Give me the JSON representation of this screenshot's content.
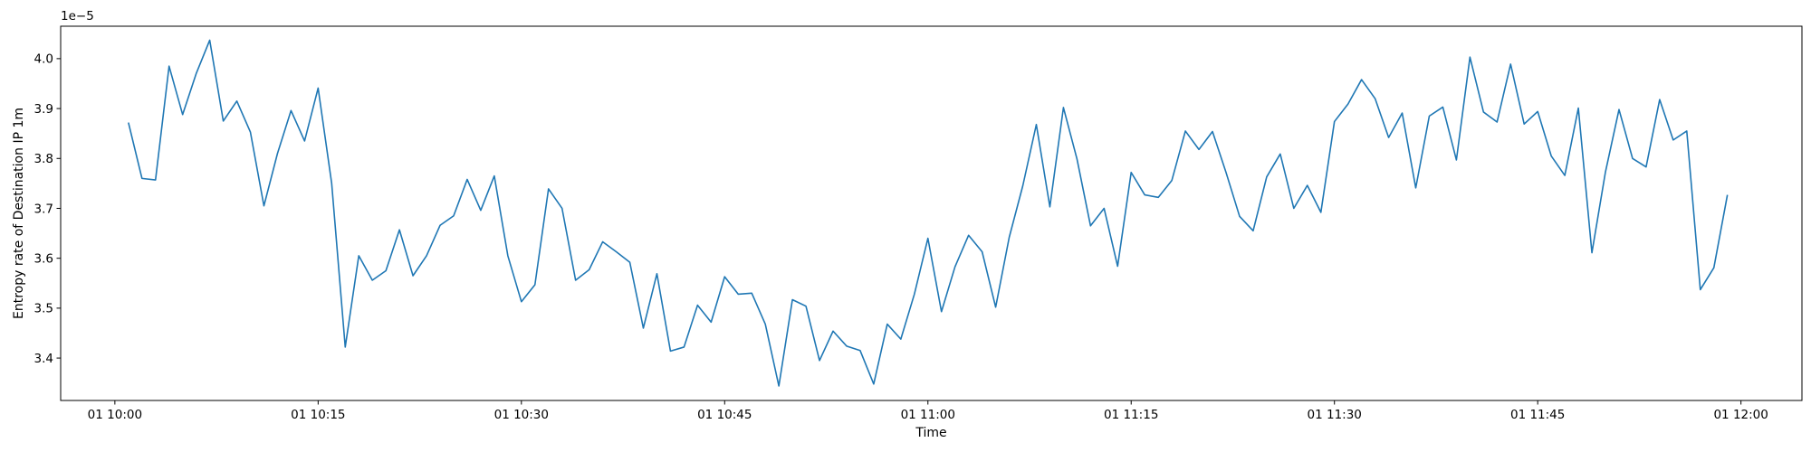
{
  "chart_data": {
    "type": "line",
    "title": "",
    "xlabel": "Time",
    "ylabel": "Entropy rate of Destination IP 1m",
    "offset_text": "1e−5",
    "scale": 1e-05,
    "grid": false,
    "legend": "none",
    "colors": {
      "line": "#1f77b4",
      "axes": "#000000"
    },
    "xlim": [
      "2021-01-01T09:56:00",
      "2021-01-01T12:04:30"
    ],
    "ylim": [
      3.315,
      4.065
    ],
    "x_ticks": [
      {
        "t": "2021-01-01T10:00",
        "label": "01 10:00"
      },
      {
        "t": "2021-01-01T10:15",
        "label": "01 10:15"
      },
      {
        "t": "2021-01-01T10:30",
        "label": "01 10:30"
      },
      {
        "t": "2021-01-01T10:45",
        "label": "01 10:45"
      },
      {
        "t": "2021-01-01T11:00",
        "label": "01 11:00"
      },
      {
        "t": "2021-01-01T11:15",
        "label": "01 11:15"
      },
      {
        "t": "2021-01-01T11:30",
        "label": "01 11:30"
      },
      {
        "t": "2021-01-01T11:45",
        "label": "01 11:45"
      },
      {
        "t": "2021-01-01T12:00",
        "label": "01 12:00"
      }
    ],
    "y_ticks": [
      {
        "v": 3.4,
        "label": "3.4"
      },
      {
        "v": 3.5,
        "label": "3.5"
      },
      {
        "v": 3.6,
        "label": "3.6"
      },
      {
        "v": 3.7,
        "label": "3.7"
      },
      {
        "v": 3.8,
        "label": "3.8"
      },
      {
        "v": 3.9,
        "label": "3.9"
      },
      {
        "v": 4.0,
        "label": "4.0"
      }
    ],
    "series": [
      {
        "x": [
          "2021-01-01T10:01",
          "2021-01-01T10:02",
          "2021-01-01T10:03",
          "2021-01-01T10:04",
          "2021-01-01T10:05",
          "2021-01-01T10:06",
          "2021-01-01T10:07",
          "2021-01-01T10:08",
          "2021-01-01T10:09",
          "2021-01-01T10:10",
          "2021-01-01T10:11",
          "2021-01-01T10:12",
          "2021-01-01T10:13",
          "2021-01-01T10:14",
          "2021-01-01T10:15",
          "2021-01-01T10:16",
          "2021-01-01T10:17",
          "2021-01-01T10:18",
          "2021-01-01T10:19",
          "2021-01-01T10:20",
          "2021-01-01T10:21",
          "2021-01-01T10:22",
          "2021-01-01T10:23",
          "2021-01-01T10:24",
          "2021-01-01T10:25",
          "2021-01-01T10:26",
          "2021-01-01T10:27",
          "2021-01-01T10:28",
          "2021-01-01T10:29",
          "2021-01-01T10:30",
          "2021-01-01T10:31",
          "2021-01-01T10:32",
          "2021-01-01T10:33",
          "2021-01-01T10:34",
          "2021-01-01T10:35",
          "2021-01-01T10:36",
          "2021-01-01T10:37",
          "2021-01-01T10:38",
          "2021-01-01T10:39",
          "2021-01-01T10:40",
          "2021-01-01T10:41",
          "2021-01-01T10:42",
          "2021-01-01T10:43",
          "2021-01-01T10:44",
          "2021-01-01T10:45",
          "2021-01-01T10:46",
          "2021-01-01T10:47",
          "2021-01-01T10:48",
          "2021-01-01T10:49",
          "2021-01-01T10:50",
          "2021-01-01T10:51",
          "2021-01-01T10:52",
          "2021-01-01T10:53",
          "2021-01-01T10:54",
          "2021-01-01T10:55",
          "2021-01-01T10:56",
          "2021-01-01T10:57",
          "2021-01-01T10:58",
          "2021-01-01T10:59",
          "2021-01-01T11:00",
          "2021-01-01T11:01",
          "2021-01-01T11:02",
          "2021-01-01T11:03",
          "2021-01-01T11:04",
          "2021-01-01T11:05",
          "2021-01-01T11:06",
          "2021-01-01T11:07",
          "2021-01-01T11:08",
          "2021-01-01T11:09",
          "2021-01-01T11:10",
          "2021-01-01T11:11",
          "2021-01-01T11:12",
          "2021-01-01T11:13",
          "2021-01-01T11:14",
          "2021-01-01T11:15",
          "2021-01-01T11:16",
          "2021-01-01T11:17",
          "2021-01-01T11:18",
          "2021-01-01T11:19",
          "2021-01-01T11:20",
          "2021-01-01T11:21",
          "2021-01-01T11:22",
          "2021-01-01T11:23",
          "2021-01-01T11:24",
          "2021-01-01T11:25",
          "2021-01-01T11:26",
          "2021-01-01T11:27",
          "2021-01-01T11:28",
          "2021-01-01T11:29",
          "2021-01-01T11:30",
          "2021-01-01T11:31",
          "2021-01-01T11:32",
          "2021-01-01T11:33",
          "2021-01-01T11:34",
          "2021-01-01T11:35",
          "2021-01-01T11:36",
          "2021-01-01T11:37",
          "2021-01-01T11:38",
          "2021-01-01T11:39",
          "2021-01-01T11:40",
          "2021-01-01T11:41",
          "2021-01-01T11:42",
          "2021-01-01T11:43",
          "2021-01-01T11:44",
          "2021-01-01T11:45",
          "2021-01-01T11:46",
          "2021-01-01T11:47",
          "2021-01-01T11:48",
          "2021-01-01T11:49",
          "2021-01-01T11:50",
          "2021-01-01T11:51",
          "2021-01-01T11:52",
          "2021-01-01T11:53",
          "2021-01-01T11:54",
          "2021-01-01T11:55",
          "2021-01-01T11:56",
          "2021-01-01T11:57",
          "2021-01-01T11:58",
          "2021-01-01T11:59"
        ],
        "y": [
          3.872,
          3.76,
          3.757,
          3.985,
          3.888,
          3.97,
          4.037,
          3.875,
          3.915,
          3.853,
          3.705,
          3.81,
          3.896,
          3.835,
          3.941,
          3.75,
          3.422,
          3.605,
          3.556,
          3.575,
          3.657,
          3.565,
          3.605,
          3.666,
          3.685,
          3.758,
          3.696,
          3.765,
          3.605,
          3.513,
          3.547,
          3.739,
          3.7,
          3.556,
          3.577,
          3.633,
          3.613,
          3.592,
          3.46,
          3.569,
          3.414,
          3.422,
          3.506,
          3.472,
          3.563,
          3.528,
          3.53,
          3.468,
          3.344,
          3.517,
          3.504,
          3.395,
          3.454,
          3.424,
          3.415,
          3.348,
          3.468,
          3.438,
          3.528,
          3.64,
          3.493,
          3.583,
          3.646,
          3.613,
          3.502,
          3.642,
          3.745,
          3.868,
          3.703,
          3.902,
          3.799,
          3.665,
          3.7,
          3.584,
          3.772,
          3.727,
          3.722,
          3.756,
          3.855,
          3.818,
          3.854,
          3.772,
          3.684,
          3.655,
          3.763,
          3.809,
          3.7,
          3.746,
          3.692,
          3.874,
          3.909,
          3.958,
          3.92,
          3.842,
          3.891,
          3.741,
          3.885,
          3.903,
          3.797,
          4.003,
          3.893,
          3.873,
          3.989,
          3.869,
          3.894,
          3.805,
          3.766,
          3.901,
          3.611,
          3.773,
          3.898,
          3.8,
          3.783,
          3.918,
          3.837,
          3.855,
          3.537,
          3.581,
          3.727
        ]
      }
    ]
  }
}
